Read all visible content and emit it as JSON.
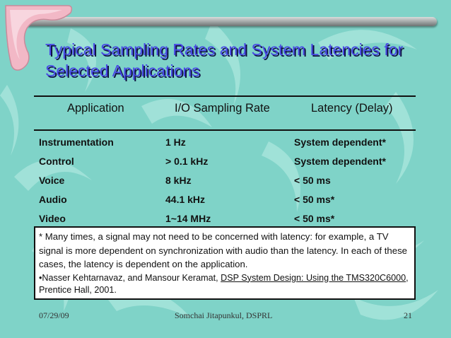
{
  "slide": {
    "title": "Typical Sampling Rates and System Latencies for Selected Applications",
    "table": {
      "headers": [
        "Application",
        "I/O Sampling Rate",
        "Latency (Delay)"
      ],
      "rows": [
        [
          "Instrumentation",
          "1 Hz",
          "System dependent*"
        ],
        [
          "Control",
          "> 0.1 kHz",
          "System dependent*"
        ],
        [
          "Voice",
          "8 kHz",
          "< 50 ms"
        ],
        [
          "Audio",
          "44.1 kHz",
          "< 50 ms*"
        ],
        [
          "Video",
          "1~14 MHz",
          "< 50 ms*"
        ]
      ]
    },
    "note": {
      "text": "* Many times, a signal may not need to be concerned with latency: for example, a TV signal is more dependent on synchronization with audio than the latency. In each of these cases, the latency is dependent on the application.",
      "ref_prefix": "•Nasser Kehtarnavaz, and Mansour Keramat, ",
      "ref_book": "DSP System Design: Using the TMS320C6000",
      "ref_suffix": ", Prentice Hall, 2001."
    },
    "footer": {
      "date": "07/29/09",
      "author": "Somchai Jitapunkul, DSPRL",
      "page": "21"
    }
  },
  "colors": {
    "background": "#7fd3c8",
    "title": "#4848e6",
    "accent_pink": "#f2b8c6",
    "boomerang_light": "#a6e4db"
  }
}
